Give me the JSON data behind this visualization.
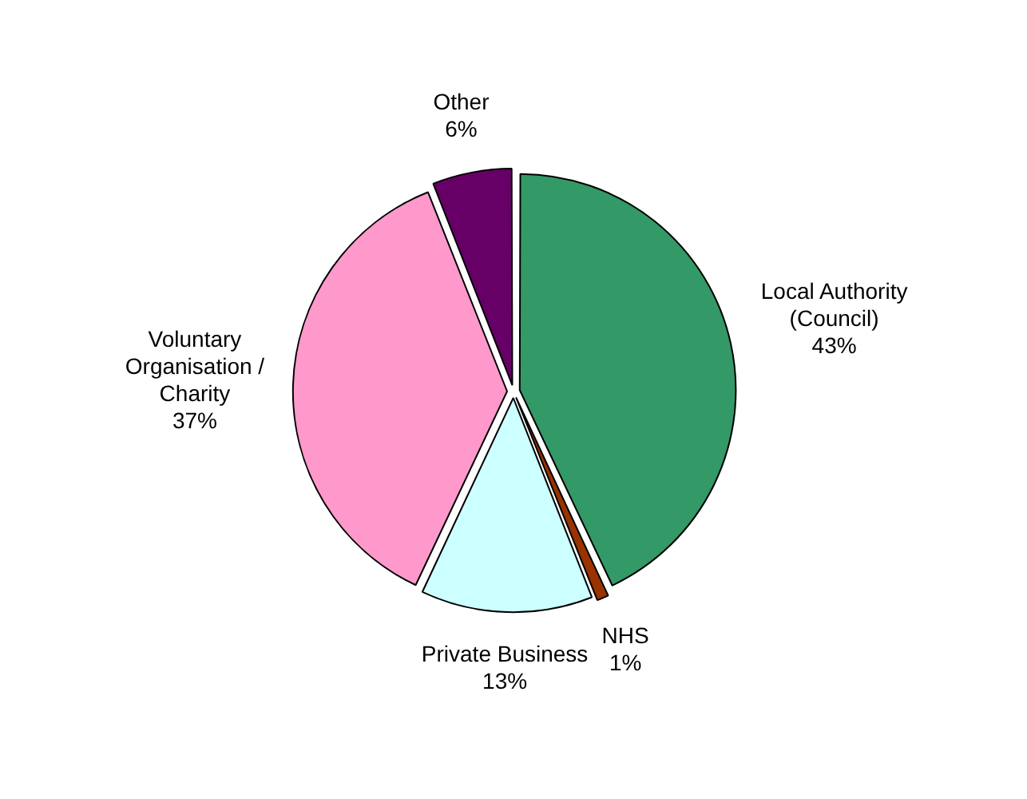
{
  "chart_data": {
    "type": "pie",
    "categories": [
      "Local Authority (Council)",
      "NHS",
      "Private Business",
      "Voluntary Organisation / Charity",
      "Other"
    ],
    "values": [
      43,
      1,
      13,
      37,
      6
    ],
    "value_labels": [
      "43%",
      "1%",
      "13%",
      "37%",
      "6%"
    ],
    "colors": [
      "#339966",
      "#993300",
      "#ccffff",
      "#ff99cc",
      "#660066"
    ],
    "legend": false
  }
}
